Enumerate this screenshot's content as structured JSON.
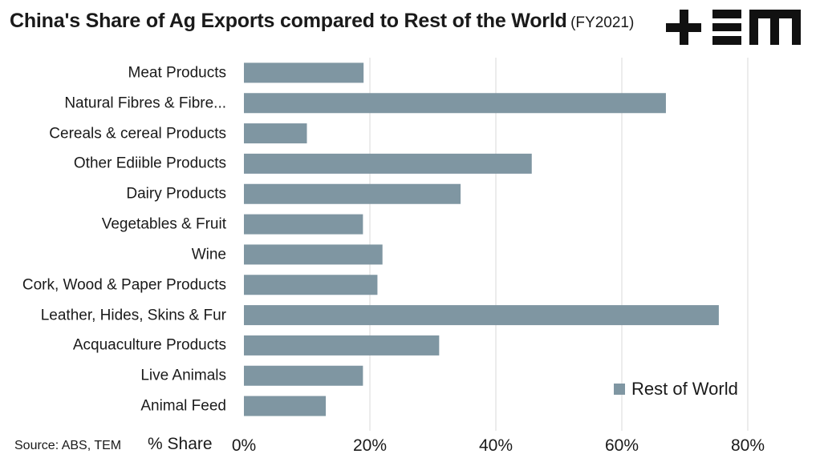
{
  "title": {
    "main": "China's Share of Ag Exports compared to Rest of the World",
    "sub": "(FY2021)"
  },
  "logo": {
    "text": "TEM",
    "icon": "tem-logo-icon"
  },
  "source": "Source: ABS, TEM",
  "colors": {
    "bar": "#7f96a2",
    "grid": "#d9d9d9"
  },
  "chart_data": {
    "type": "bar",
    "orientation": "horizontal",
    "title": "China's Share of Ag Exports compared to Rest of the World (FY2021)",
    "xlabel": "% Share",
    "ylabel": "",
    "xlim": [
      0,
      80
    ],
    "xticks": [
      "0%",
      "20%",
      "40%",
      "60%",
      "80%"
    ],
    "grid": "vertical",
    "legend_position": "bottom-right",
    "categories": [
      "Meat Products",
      "Natural Fibres & Fibre...",
      "Cereals & cereal Products",
      "Other Ediible Products",
      "Dairy Products",
      "Vegetables & Fruit",
      "Wine",
      "Cork, Wood & Paper Products",
      "Leather, Hides, Skins & Fur",
      "Acquaculture Products",
      "Live Animals",
      "Animal Feed"
    ],
    "series": [
      {
        "name": "Rest of World",
        "values": [
          19,
          67,
          10,
          45.7,
          34.4,
          18.9,
          22,
          21.2,
          75.4,
          31,
          18.9,
          13
        ]
      }
    ]
  }
}
